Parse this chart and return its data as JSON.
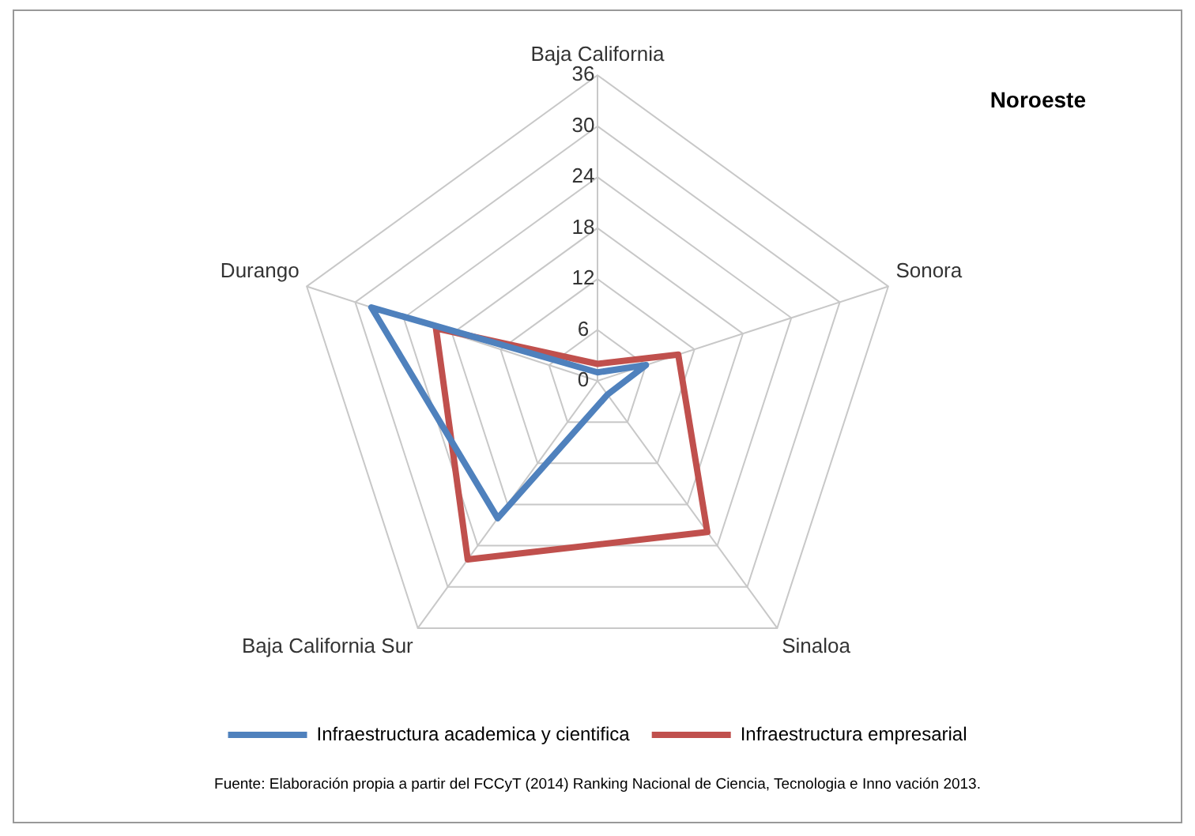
{
  "chart_data": {
    "type": "radar",
    "title": "Noroeste",
    "categories": [
      "Baja California",
      "Sonora",
      "Sinaloa",
      "Baja California Sur",
      "Durango"
    ],
    "series": [
      {
        "name": "Infraestructura academica y cientifica",
        "color": "#4f81bd",
        "values": [
          1,
          6,
          2,
          20,
          28
        ]
      },
      {
        "name": "Infraestructura empresarial",
        "color": "#c0504d",
        "values": [
          2,
          10,
          22,
          26,
          20
        ]
      }
    ],
    "ylim": [
      0,
      36
    ],
    "yticks": [
      0,
      6,
      12,
      18,
      24,
      30,
      36
    ],
    "grid": true,
    "legend": "bottom",
    "marker": "none",
    "line_style": "solid",
    "annotations": [
      "Fuente: Elaboración propia a partir del FCCyT (2014) Ranking Nacional de Ciencia, Tecnologia e Inno vación 2013."
    ]
  }
}
